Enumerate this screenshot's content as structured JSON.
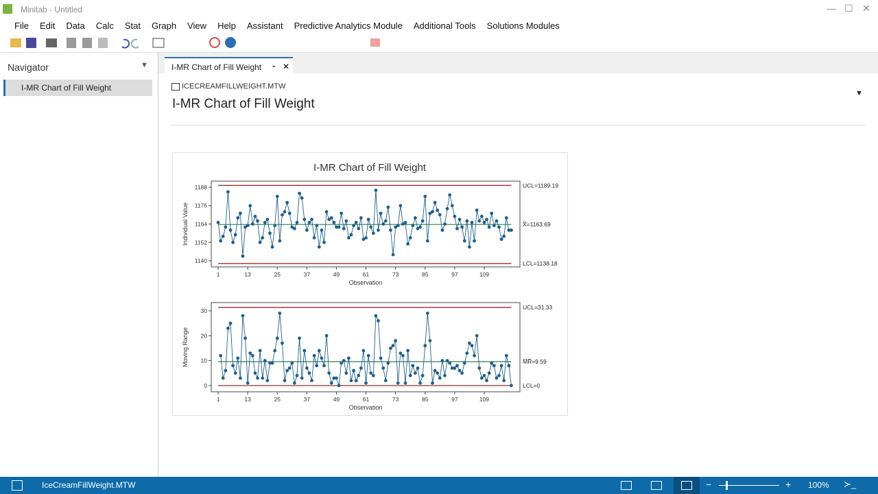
{
  "window": {
    "title": "Minitab - Untitled"
  },
  "menu": [
    "File",
    "Edit",
    "Data",
    "Calc",
    "Stat",
    "Graph",
    "View",
    "Help",
    "Assistant",
    "Predictive Analytics Module",
    "Additional Tools",
    "Solutions Modules"
  ],
  "navigator": {
    "title": "Navigator",
    "items": [
      "I-MR Chart of Fill Weight"
    ]
  },
  "tab": {
    "label": "I-MR Chart of Fill Weight"
  },
  "output": {
    "worksheet": "ICECREAMFILLWEIGHT.MTW",
    "title": "I-MR Chart of Fill Weight"
  },
  "chart_data": [
    {
      "type": "line",
      "title": "I-MR Chart of Fill Weight",
      "y_label": "Individual Value",
      "x_label": "Observation",
      "color": "#1f5f8b",
      "x": [
        1,
        2,
        3,
        4,
        5,
        6,
        7,
        8,
        9,
        10,
        11,
        12,
        13,
        14,
        15,
        16,
        17,
        18,
        19,
        20,
        21,
        22,
        23,
        24,
        25,
        26,
        27,
        28,
        29,
        30,
        31,
        32,
        33,
        34,
        35,
        36,
        37,
        38,
        39,
        40,
        41,
        42,
        43,
        44,
        45,
        46,
        47,
        48,
        49,
        50,
        51,
        52,
        53,
        54,
        55,
        56,
        57,
        58,
        59,
        60,
        61,
        62,
        63,
        64,
        65,
        66,
        67,
        68,
        69,
        70,
        71,
        72,
        73,
        74,
        75,
        76,
        77,
        78,
        79,
        80,
        81,
        82,
        83,
        84,
        85,
        86,
        87,
        88,
        89,
        90,
        91,
        92,
        93,
        94,
        95,
        96,
        97,
        98,
        99,
        100,
        101,
        102,
        103,
        104,
        105,
        106,
        107,
        108,
        109,
        110,
        111,
        112,
        113,
        114,
        115,
        116,
        117,
        118,
        119,
        120
      ],
      "values": [
        1165,
        1153,
        1156,
        1162,
        1185,
        1160,
        1152,
        1157,
        1168,
        1171,
        1143,
        1162,
        1163,
        1176,
        1164,
        1169,
        1166,
        1152,
        1155,
        1165,
        1167,
        1158,
        1149,
        1163,
        1182,
        1153,
        1170,
        1172,
        1178,
        1171,
        1162,
        1161,
        1165,
        1184,
        1181,
        1167,
        1160,
        1165,
        1167,
        1155,
        1163,
        1149,
        1160,
        1152,
        1172,
        1167,
        1168,
        1165,
        1162,
        1162,
        1171,
        1161,
        1166,
        1155,
        1157,
        1163,
        1165,
        1161,
        1168,
        1154,
        1155,
        1167,
        1162,
        1158,
        1186,
        1160,
        1171,
        1164,
        1166,
        1175,
        1160,
        1144,
        1162,
        1163,
        1176,
        1164,
        1165,
        1151,
        1155,
        1163,
        1168,
        1161,
        1162,
        1166,
        1182,
        1153,
        1171,
        1172,
        1178,
        1173,
        1170,
        1160,
        1164,
        1174,
        1183,
        1176,
        1169,
        1161,
        1167,
        1162,
        1153,
        1166,
        1149,
        1165,
        1153,
        1173,
        1166,
        1169,
        1165,
        1167,
        1162,
        1171,
        1163,
        1166,
        1162,
        1154,
        1156,
        1168,
        1160,
        1160
      ],
      "xlim": [
        -1.8,
        123.5
      ],
      "xticks": [
        1,
        13,
        25,
        37,
        49,
        61,
        73,
        85,
        97,
        109
      ],
      "ylim": [
        1136,
        1192
      ],
      "yticks": [
        1140,
        1152,
        1164,
        1176,
        1188
      ],
      "limits": [
        {
          "value": 1189.19,
          "label": "UCL=1189.19",
          "color": "#8b1a1a"
        },
        {
          "value": 1163.69,
          "label": "X̅=1163.69",
          "color": "#2e7d4f"
        },
        {
          "value": 1138.18,
          "label": "LCL=1138.18",
          "color": "#8b1a1a"
        }
      ]
    },
    {
      "type": "line",
      "y_label": "Moving Range",
      "x_label": "Observation",
      "color": "#1f5f8b",
      "x": [
        1,
        2,
        3,
        4,
        5,
        6,
        7,
        8,
        9,
        10,
        11,
        12,
        13,
        14,
        15,
        16,
        17,
        18,
        19,
        20,
        21,
        22,
        23,
        24,
        25,
        26,
        27,
        28,
        29,
        30,
        31,
        32,
        33,
        34,
        35,
        36,
        37,
        38,
        39,
        40,
        41,
        42,
        43,
        44,
        45,
        46,
        47,
        48,
        49,
        50,
        51,
        52,
        53,
        54,
        55,
        56,
        57,
        58,
        59,
        60,
        61,
        62,
        63,
        64,
        65,
        66,
        67,
        68,
        69,
        70,
        71,
        72,
        73,
        74,
        75,
        76,
        77,
        78,
        79,
        80,
        81,
        82,
        83,
        84,
        85,
        86,
        87,
        88,
        89,
        90,
        91,
        92,
        93,
        94,
        95,
        96,
        97,
        98,
        99,
        100,
        101,
        102,
        103,
        104,
        105,
        106,
        107,
        108,
        109,
        110,
        111,
        112,
        113,
        114,
        115,
        116,
        117,
        118,
        119,
        120
      ],
      "values": [
        null,
        12,
        3,
        6,
        23,
        25,
        8,
        5,
        11,
        3,
        28,
        19,
        1,
        13,
        12,
        5,
        3,
        14,
        3,
        10,
        2,
        9,
        9,
        14,
        19,
        29,
        17,
        2,
        6,
        7,
        9,
        1,
        4,
        19,
        3,
        14,
        7,
        5,
        2,
        12,
        8,
        14,
        11,
        8,
        20,
        5,
        1,
        3,
        3,
        0,
        9,
        10,
        5,
        11,
        2,
        6,
        2,
        4,
        7,
        14,
        1,
        12,
        5,
        4,
        28,
        26,
        11,
        7,
        2,
        9,
        15,
        16,
        18,
        1,
        13,
        12,
        1,
        14,
        4,
        8,
        5,
        7,
        1,
        4,
        16,
        29,
        18,
        1,
        6,
        5,
        3,
        10,
        4,
        10,
        9,
        7,
        7,
        8,
        6,
        5,
        9,
        13,
        17,
        16,
        12,
        20,
        7,
        3,
        4,
        2,
        5,
        9,
        8,
        3,
        4,
        8,
        2,
        12,
        8,
        0
      ],
      "xlim": [
        -1.8,
        123.5
      ],
      "xticks": [
        1,
        13,
        25,
        37,
        49,
        61,
        73,
        85,
        97,
        109
      ],
      "ylim": [
        -2.5,
        33.3
      ],
      "yticks": [
        0,
        10,
        20,
        30
      ],
      "limits": [
        {
          "value": 31.33,
          "label": "UCL=31.33",
          "color": "#8b1a1a"
        },
        {
          "value": 9.59,
          "label": "M̅R̅=9.59",
          "color": "#2e7d4f"
        },
        {
          "value": 0,
          "label": "LCL=0",
          "color": "#8b1a1a"
        }
      ]
    }
  ],
  "status": {
    "file": "IceCreamFillWeight.MTW",
    "zoom": "100%"
  }
}
